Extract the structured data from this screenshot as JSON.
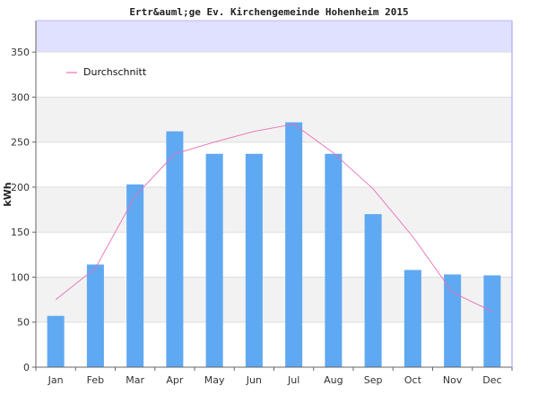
{
  "chart_data": {
    "type": "bar",
    "title": "Ertr&auml;ge Ev. Kirchengemeinde Hohenheim 2015",
    "ylabel": "kWh",
    "xlabel": "",
    "categories": [
      "Jan",
      "Feb",
      "Mar",
      "Apr",
      "May",
      "Jun",
      "Jul",
      "Aug",
      "Sep",
      "Oct",
      "Nov",
      "Dec"
    ],
    "series": [
      {
        "type": "bar",
        "color": "#5fa8f2",
        "values": [
          57,
          114,
          203,
          262,
          237,
          237,
          272,
          237,
          170,
          108,
          103,
          102
        ]
      },
      {
        "name": "Durchschnitt",
        "type": "line",
        "color": "#e96fb5",
        "values": [
          75,
          110,
          190,
          237,
          250,
          262,
          270,
          238,
          198,
          145,
          83,
          62
        ]
      }
    ],
    "ylim": [
      0,
      385
    ],
    "yticks": [
      0,
      50,
      100,
      150,
      200,
      250,
      300,
      350
    ],
    "grid": true,
    "legend": "top-left",
    "colors": {
      "band_light": "#ffffff",
      "band_dark": "#f2f2f2",
      "top_band": "#e0e0ff",
      "frame": "#b8b8ff"
    }
  }
}
